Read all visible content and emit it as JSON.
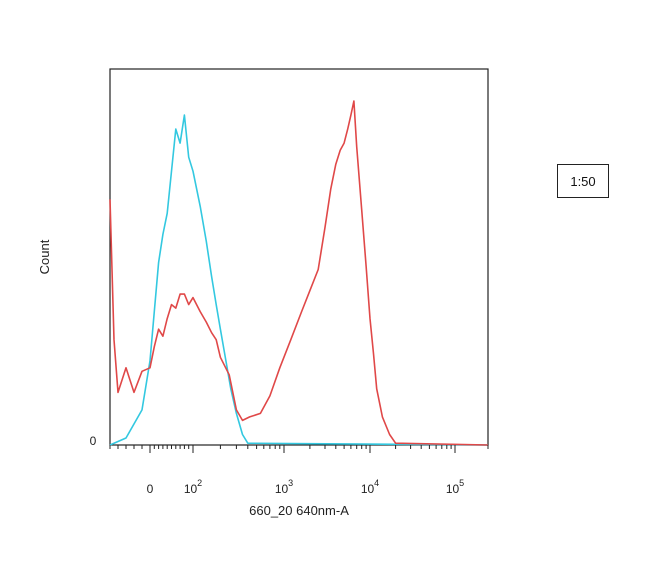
{
  "chart_data": {
    "type": "line",
    "xscale": "biexponential",
    "xlabel": "660_20 640nm-A",
    "ylabel": "Count",
    "y_zero_label": "0",
    "xlim": [
      -50,
      200000
    ],
    "ylim": [
      0,
      100
    ],
    "x_ticks": [
      {
        "value": 0,
        "base": "0",
        "exp": ""
      },
      {
        "value": 100,
        "base": "10",
        "exp": "2"
      },
      {
        "value": 1000,
        "base": "10",
        "exp": "3"
      },
      {
        "value": 10000,
        "base": "10",
        "exp": "4"
      },
      {
        "value": 100000,
        "base": "10",
        "exp": "5"
      }
    ],
    "legend": {
      "label": "1:50",
      "placement": "right"
    },
    "series": [
      {
        "color": "#33c8e0",
        "points": [
          [
            -50,
            0
          ],
          [
            -30,
            2
          ],
          [
            -10,
            10
          ],
          [
            0,
            24
          ],
          [
            10,
            38
          ],
          [
            20,
            52
          ],
          [
            30,
            60
          ],
          [
            40,
            66
          ],
          [
            50,
            78
          ],
          [
            60,
            90
          ],
          [
            70,
            86
          ],
          [
            80,
            94
          ],
          [
            90,
            82
          ],
          [
            100,
            78
          ],
          [
            120,
            68
          ],
          [
            140,
            58
          ],
          [
            160,
            48
          ],
          [
            180,
            40
          ],
          [
            200,
            33
          ],
          [
            230,
            24
          ],
          [
            260,
            16
          ],
          [
            300,
            9
          ],
          [
            350,
            3
          ],
          [
            400,
            0.5
          ],
          [
            200000,
            0
          ]
        ]
      },
      {
        "color": "#e04848",
        "points": [
          [
            -50,
            70
          ],
          [
            -45,
            30
          ],
          [
            -40,
            15
          ],
          [
            -30,
            22
          ],
          [
            -20,
            15
          ],
          [
            -10,
            21
          ],
          [
            0,
            22
          ],
          [
            10,
            28
          ],
          [
            20,
            33
          ],
          [
            30,
            31
          ],
          [
            40,
            36
          ],
          [
            50,
            40
          ],
          [
            60,
            39
          ],
          [
            70,
            43
          ],
          [
            80,
            43
          ],
          [
            90,
            40
          ],
          [
            100,
            42
          ],
          [
            120,
            38
          ],
          [
            140,
            35
          ],
          [
            160,
            32
          ],
          [
            180,
            30
          ],
          [
            200,
            25
          ],
          [
            250,
            20
          ],
          [
            300,
            10
          ],
          [
            350,
            7
          ],
          [
            420,
            8
          ],
          [
            550,
            9
          ],
          [
            700,
            14
          ],
          [
            900,
            22
          ],
          [
            1200,
            30
          ],
          [
            1600,
            38
          ],
          [
            2000,
            44
          ],
          [
            2500,
            50
          ],
          [
            3000,
            62
          ],
          [
            3500,
            73
          ],
          [
            4000,
            80
          ],
          [
            4500,
            84
          ],
          [
            5000,
            86
          ],
          [
            5500,
            90
          ],
          [
            6000,
            94
          ],
          [
            6500,
            98
          ],
          [
            7000,
            85
          ],
          [
            8000,
            67
          ],
          [
            9000,
            51
          ],
          [
            10000,
            36
          ],
          [
            11000,
            26
          ],
          [
            12000,
            16
          ],
          [
            14000,
            8
          ],
          [
            17000,
            3
          ],
          [
            20000,
            0.5
          ],
          [
            200000,
            0
          ]
        ]
      }
    ]
  }
}
